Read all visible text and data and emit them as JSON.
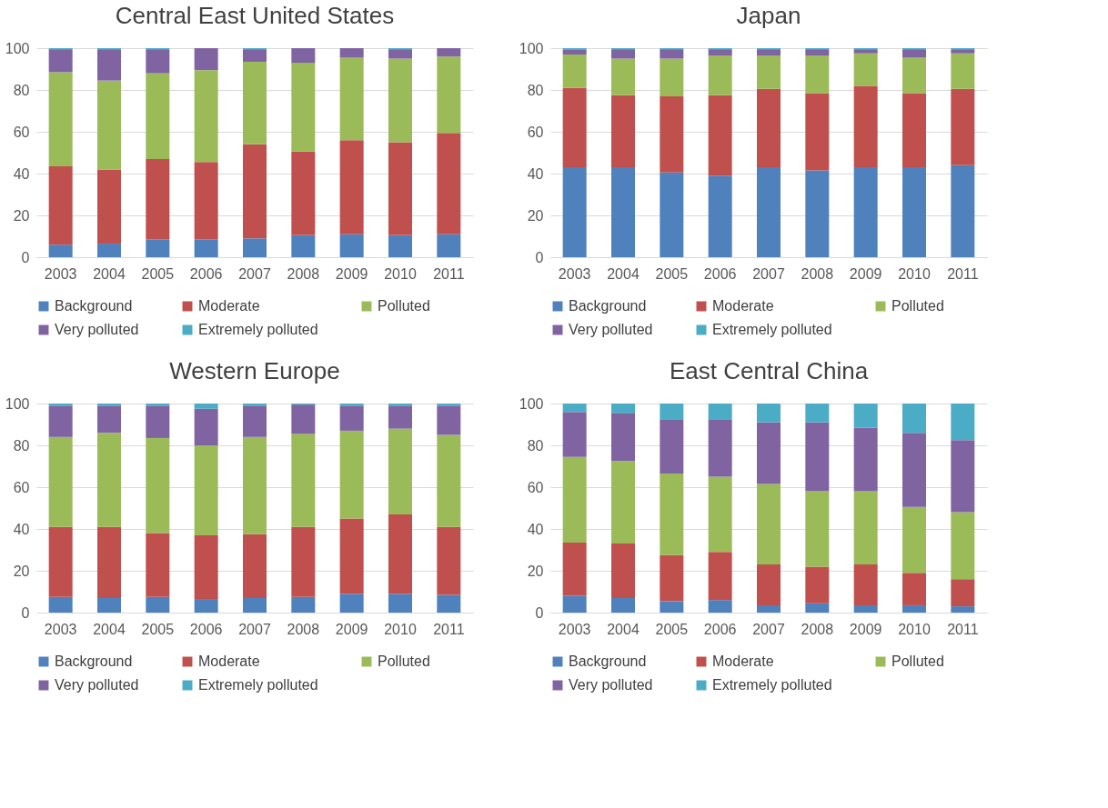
{
  "chart_data": [
    {
      "type": "bar",
      "stacked": true,
      "title": "Central East United States",
      "categories": [
        "2003",
        "2004",
        "2005",
        "2006",
        "2007",
        "2008",
        "2009",
        "2010",
        "2011"
      ],
      "ylim": [
        0,
        100
      ],
      "yticks": [
        0,
        20,
        40,
        60,
        80,
        100
      ],
      "grid": "y",
      "legend": "bottom",
      "series": [
        {
          "name": "Background",
          "color": "#4f81bd",
          "values": [
            6,
            6.5,
            8.5,
            8.5,
            9,
            10.5,
            11,
            10.5,
            11
          ]
        },
        {
          "name": "Moderate",
          "color": "#c0504d",
          "values": [
            37.5,
            35.5,
            38.5,
            37,
            45,
            40,
            45,
            44.5,
            48.5
          ]
        },
        {
          "name": "Polluted",
          "color": "#9bbb59",
          "values": [
            45,
            42.5,
            41,
            44,
            39.5,
            42.5,
            39.5,
            40,
            36.5
          ]
        },
        {
          "name": "Very polluted",
          "color": "#8064a2",
          "values": [
            11,
            15,
            11.5,
            10.5,
            6,
            7,
            4.5,
            4.5,
            4
          ]
        },
        {
          "name": "Extremely polluted",
          "color": "#4bacc6",
          "values": [
            0.5,
            0.5,
            0.5,
            0,
            0.5,
            0,
            0,
            0.5,
            0
          ]
        }
      ]
    },
    {
      "type": "bar",
      "stacked": true,
      "title": "Japan",
      "categories": [
        "2003",
        "2004",
        "2005",
        "2006",
        "2007",
        "2008",
        "2009",
        "2010",
        "2011"
      ],
      "ylim": [
        0,
        100
      ],
      "yticks": [
        0,
        20,
        40,
        60,
        80,
        100
      ],
      "grid": "y",
      "legend": "bottom",
      "series": [
        {
          "name": "Background",
          "color": "#4f81bd",
          "values": [
            43,
            43,
            40.5,
            39,
            43,
            41.5,
            43,
            43,
            44
          ]
        },
        {
          "name": "Moderate",
          "color": "#c0504d",
          "values": [
            38,
            34.5,
            36.5,
            38.5,
            37.5,
            37,
            39,
            35.5,
            36.5
          ]
        },
        {
          "name": "Polluted",
          "color": "#9bbb59",
          "values": [
            16,
            17.5,
            18,
            19,
            16,
            18,
            15.5,
            17,
            17
          ]
        },
        {
          "name": "Very polluted",
          "color": "#8064a2",
          "values": [
            2.5,
            4.5,
            4.5,
            3,
            3,
            3,
            2,
            4,
            2
          ]
        },
        {
          "name": "Extremely polluted",
          "color": "#4bacc6",
          "values": [
            0.5,
            0.5,
            0.5,
            0.5,
            0.5,
            0.5,
            0.5,
            0.5,
            0.5
          ]
        }
      ]
    },
    {
      "type": "bar",
      "stacked": true,
      "title": "Western Europe",
      "categories": [
        "2003",
        "2004",
        "2005",
        "2006",
        "2007",
        "2008",
        "2009",
        "2010",
        "2011"
      ],
      "ylim": [
        0,
        100
      ],
      "yticks": [
        0,
        20,
        40,
        60,
        80,
        100
      ],
      "grid": "y",
      "legend": "bottom",
      "series": [
        {
          "name": "Background",
          "color": "#4f81bd",
          "values": [
            7.5,
            7,
            7.5,
            6.5,
            7,
            7.5,
            9,
            9,
            8.5
          ]
        },
        {
          "name": "Moderate",
          "color": "#c0504d",
          "values": [
            33.5,
            34,
            30.5,
            30.5,
            30.5,
            33.5,
            36,
            38,
            32.5
          ]
        },
        {
          "name": "Polluted",
          "color": "#9bbb59",
          "values": [
            43,
            45,
            45.5,
            43,
            46.5,
            44.5,
            42,
            41,
            44
          ]
        },
        {
          "name": "Very polluted",
          "color": "#8064a2",
          "values": [
            15,
            13,
            15.5,
            17.5,
            15,
            14,
            12,
            11,
            14
          ]
        },
        {
          "name": "Extremely polluted",
          "color": "#4bacc6",
          "values": [
            1,
            1,
            1,
            2.5,
            1,
            0.5,
            1,
            1,
            1
          ]
        }
      ]
    },
    {
      "type": "bar",
      "stacked": true,
      "title": "East Central China",
      "categories": [
        "2003",
        "2004",
        "2005",
        "2006",
        "2007",
        "2008",
        "2009",
        "2010",
        "2011"
      ],
      "ylim": [
        0,
        100
      ],
      "yticks": [
        0,
        20,
        40,
        60,
        80,
        100
      ],
      "grid": "y",
      "legend": "bottom",
      "series": [
        {
          "name": "Background",
          "color": "#4f81bd",
          "values": [
            8,
            7,
            5.5,
            6,
            3.5,
            4.5,
            3.5,
            3.5,
            3
          ]
        },
        {
          "name": "Moderate",
          "color": "#c0504d",
          "values": [
            25.5,
            26,
            22,
            23,
            19.5,
            17.5,
            19.5,
            15.5,
            13
          ]
        },
        {
          "name": "Polluted",
          "color": "#9bbb59",
          "values": [
            41,
            39.5,
            39,
            36,
            38.5,
            36,
            35,
            31.5,
            32
          ]
        },
        {
          "name": "Very polluted",
          "color": "#8064a2",
          "values": [
            21.5,
            23,
            26,
            27.5,
            29.5,
            33,
            30.5,
            35.5,
            34.5
          ]
        },
        {
          "name": "Extremely polluted",
          "color": "#4bacc6",
          "values": [
            4,
            4.5,
            7.5,
            7.5,
            9,
            9,
            11.5,
            14,
            17.5
          ]
        }
      ]
    }
  ]
}
